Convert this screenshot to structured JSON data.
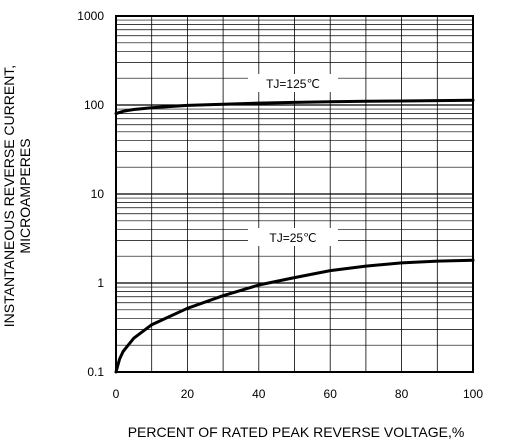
{
  "chart_data": {
    "type": "line",
    "title": "",
    "xlabel": "PERCENT OF RATED PEAK REVERSE VOLTAGE,%",
    "ylabel_line1": "INSTANTANEOUS REVERSE CURRENT,",
    "ylabel_line2": "MICROAMPERES",
    "xlim": [
      0,
      100
    ],
    "ylim": [
      0.1,
      1000
    ],
    "y_scale": "log",
    "grid": true,
    "x_ticks": [
      "0",
      "20",
      "40",
      "60",
      "80",
      "100"
    ],
    "y_ticks": [
      "0.1",
      "1",
      "10",
      "100",
      "1000"
    ],
    "series": [
      {
        "name": "TJ=125℃",
        "x": [
          0,
          2,
          5,
          10,
          20,
          30,
          40,
          50,
          60,
          70,
          80,
          90,
          100
        ],
        "y": [
          80,
          85,
          89,
          93,
          99,
          102,
          105,
          107,
          109,
          110,
          111,
          112,
          113
        ]
      },
      {
        "name": "TJ=25℃",
        "x": [
          0,
          1,
          2,
          5,
          10,
          15,
          20,
          30,
          40,
          50,
          60,
          70,
          80,
          90,
          100
        ],
        "y": [
          0.1,
          0.14,
          0.17,
          0.24,
          0.34,
          0.42,
          0.52,
          0.72,
          0.95,
          1.15,
          1.38,
          1.55,
          1.68,
          1.76,
          1.8
        ]
      }
    ]
  }
}
